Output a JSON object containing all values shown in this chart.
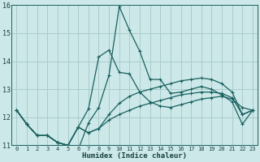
{
  "xlabel": "Humidex (Indice chaleur)",
  "bg_color": "#cce8e8",
  "grid_color": "#aacccc",
  "line_color": "#1a6060",
  "xlim": [
    -0.5,
    23.5
  ],
  "ylim": [
    11,
    16
  ],
  "yticks": [
    11,
    12,
    13,
    14,
    15,
    16
  ],
  "xticks": [
    0,
    1,
    2,
    3,
    4,
    5,
    6,
    7,
    8,
    9,
    10,
    11,
    12,
    13,
    14,
    15,
    16,
    17,
    18,
    19,
    20,
    21,
    22,
    23
  ],
  "lines": [
    {
      "x": [
        0,
        1,
        2,
        3,
        4,
        5,
        6,
        7,
        8,
        9,
        10,
        11,
        12,
        13,
        14,
        15,
        16,
        17,
        18,
        19,
        20,
        21,
        22,
        23
      ],
      "y": [
        12.25,
        11.75,
        11.35,
        11.35,
        11.1,
        11.0,
        10.85,
        11.8,
        12.35,
        13.5,
        15.95,
        15.1,
        14.35,
        13.35,
        13.35,
        12.85,
        12.9,
        13.0,
        13.1,
        13.0,
        12.8,
        12.55,
        11.75,
        12.25
      ]
    },
    {
      "x": [
        0,
        1,
        2,
        3,
        4,
        5,
        6,
        7,
        8,
        9,
        10,
        11,
        12,
        13,
        14,
        15,
        16,
        17,
        18,
        19,
        20,
        21,
        22,
        23
      ],
      "y": [
        12.25,
        11.75,
        11.35,
        11.35,
        11.1,
        11.0,
        11.65,
        12.3,
        14.15,
        14.4,
        13.6,
        13.55,
        12.9,
        12.55,
        12.4,
        12.35,
        12.45,
        12.55,
        12.65,
        12.7,
        12.75,
        12.65,
        12.35,
        12.25
      ]
    },
    {
      "x": [
        0,
        1,
        2,
        3,
        4,
        5,
        6,
        7,
        8,
        9,
        10,
        11,
        12,
        13,
        14,
        15,
        16,
        17,
        18,
        19,
        20,
        21,
        22,
        23
      ],
      "y": [
        12.25,
        11.75,
        11.35,
        11.35,
        11.1,
        11.0,
        11.65,
        11.45,
        11.6,
        12.1,
        12.5,
        12.75,
        12.9,
        13.0,
        13.1,
        13.2,
        13.3,
        13.35,
        13.4,
        13.35,
        13.2,
        12.9,
        12.1,
        12.25
      ]
    },
    {
      "x": [
        0,
        1,
        2,
        3,
        4,
        5,
        6,
        7,
        8,
        9,
        10,
        11,
        12,
        13,
        14,
        15,
        16,
        17,
        18,
        19,
        20,
        21,
        22,
        23
      ],
      "y": [
        12.25,
        11.75,
        11.35,
        11.35,
        11.1,
        11.0,
        11.65,
        11.45,
        11.6,
        11.9,
        12.1,
        12.25,
        12.4,
        12.5,
        12.6,
        12.7,
        12.8,
        12.85,
        12.9,
        12.9,
        12.85,
        12.7,
        12.1,
        12.25
      ]
    }
  ]
}
